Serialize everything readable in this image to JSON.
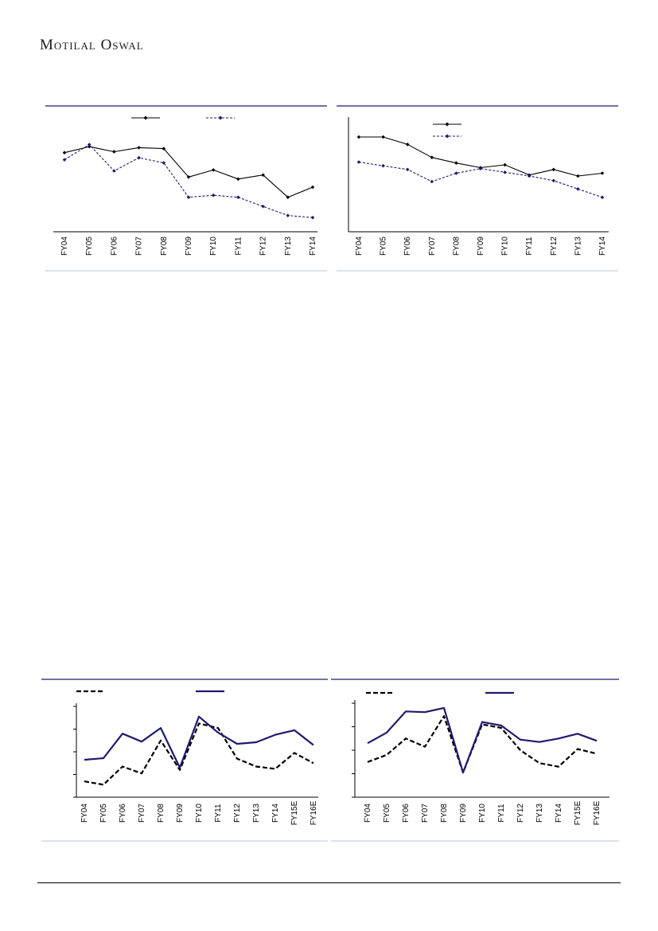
{
  "header": {
    "brand": "Motilal Oswal"
  },
  "colors": {
    "navy": "#1f1a6e",
    "black": "#000000",
    "rule": "#1f1a6e",
    "light_rule": "#b8c4dc"
  },
  "chart_data": [
    {
      "type": "line",
      "categories": [
        "FY04",
        "FY05",
        "FY06",
        "FY07",
        "FY08",
        "FY09",
        "FY10",
        "FY11",
        "FY12",
        "FY13",
        "FY14"
      ],
      "series": [
        {
          "style": "solid-marker",
          "color": "#000000",
          "values": [
            74,
            77,
            74.5,
            76.5,
            76,
            62,
            65.5,
            61,
            63,
            52,
            57
          ]
        },
        {
          "style": "dashed-marker",
          "color": "#1f1a6e",
          "values": [
            70.5,
            78,
            65,
            71.5,
            69,
            52,
            53,
            52,
            47.5,
            43,
            42
          ]
        }
      ],
      "ylim": [
        35,
        90
      ],
      "legend": "top"
    },
    {
      "type": "line",
      "categories": [
        "FY04",
        "FY05",
        "FY06",
        "FY07",
        "FY08",
        "FY09",
        "FY10",
        "FY11",
        "FY12",
        "FY13",
        "FY14"
      ],
      "series": [
        {
          "style": "solid-marker",
          "color": "#000000",
          "values": [
            91,
            91,
            87,
            80,
            77,
            74.5,
            76,
            70.5,
            73.5,
            70,
            71.5
          ]
        },
        {
          "style": "dashed-marker",
          "color": "#1f1a6e",
          "values": [
            77.5,
            75.5,
            73.5,
            67,
            71.5,
            74,
            72,
            70,
            67.5,
            63,
            58.5
          ]
        }
      ],
      "ylim": [
        40,
        100
      ],
      "legend": "top"
    },
    {
      "type": "line",
      "categories": [
        "FY04",
        "FY05",
        "FY06",
        "FY07",
        "FY08",
        "FY09",
        "FY10",
        "FY11",
        "FY12",
        "FY13",
        "FY14",
        "FY15E",
        "FY16E"
      ],
      "series": [
        {
          "style": "dashed",
          "color": "#000000",
          "values": [
            0.7,
            0.55,
            1.35,
            1.05,
            2.5,
            1.2,
            3.25,
            3.05,
            1.7,
            1.35,
            1.25,
            1.95,
            1.5
          ]
        },
        {
          "style": "solid",
          "color": "#1f1a6e",
          "values": [
            1.65,
            1.72,
            2.8,
            2.45,
            3.05,
            1.3,
            3.55,
            2.85,
            2.35,
            2.42,
            2.75,
            2.95,
            2.3
          ]
        }
      ],
      "ylim": [
        0,
        4
      ],
      "legend": "top"
    },
    {
      "type": "line",
      "categories": [
        "FY04",
        "FY05",
        "FY06",
        "FY07",
        "FY08",
        "FY09",
        "FY10",
        "FY11",
        "FY12",
        "FY13",
        "FY14",
        "FY15E",
        "FY16E"
      ],
      "series": [
        {
          "style": "dashed",
          "color": "#000000",
          "values": [
            0.5,
            0.8,
            1.5,
            1.15,
            2.45,
            0.05,
            2.1,
            1.95,
            1.0,
            0.45,
            0.3,
            1.05,
            0.85
          ]
        },
        {
          "style": "solid",
          "color": "#1f1a6e",
          "values": [
            1.3,
            1.75,
            2.65,
            2.62,
            2.8,
            0.05,
            2.2,
            2.05,
            1.45,
            1.35,
            1.5,
            1.7,
            1.4
          ]
        }
      ],
      "ylim": [
        -1,
        3
      ],
      "legend": "top"
    }
  ]
}
